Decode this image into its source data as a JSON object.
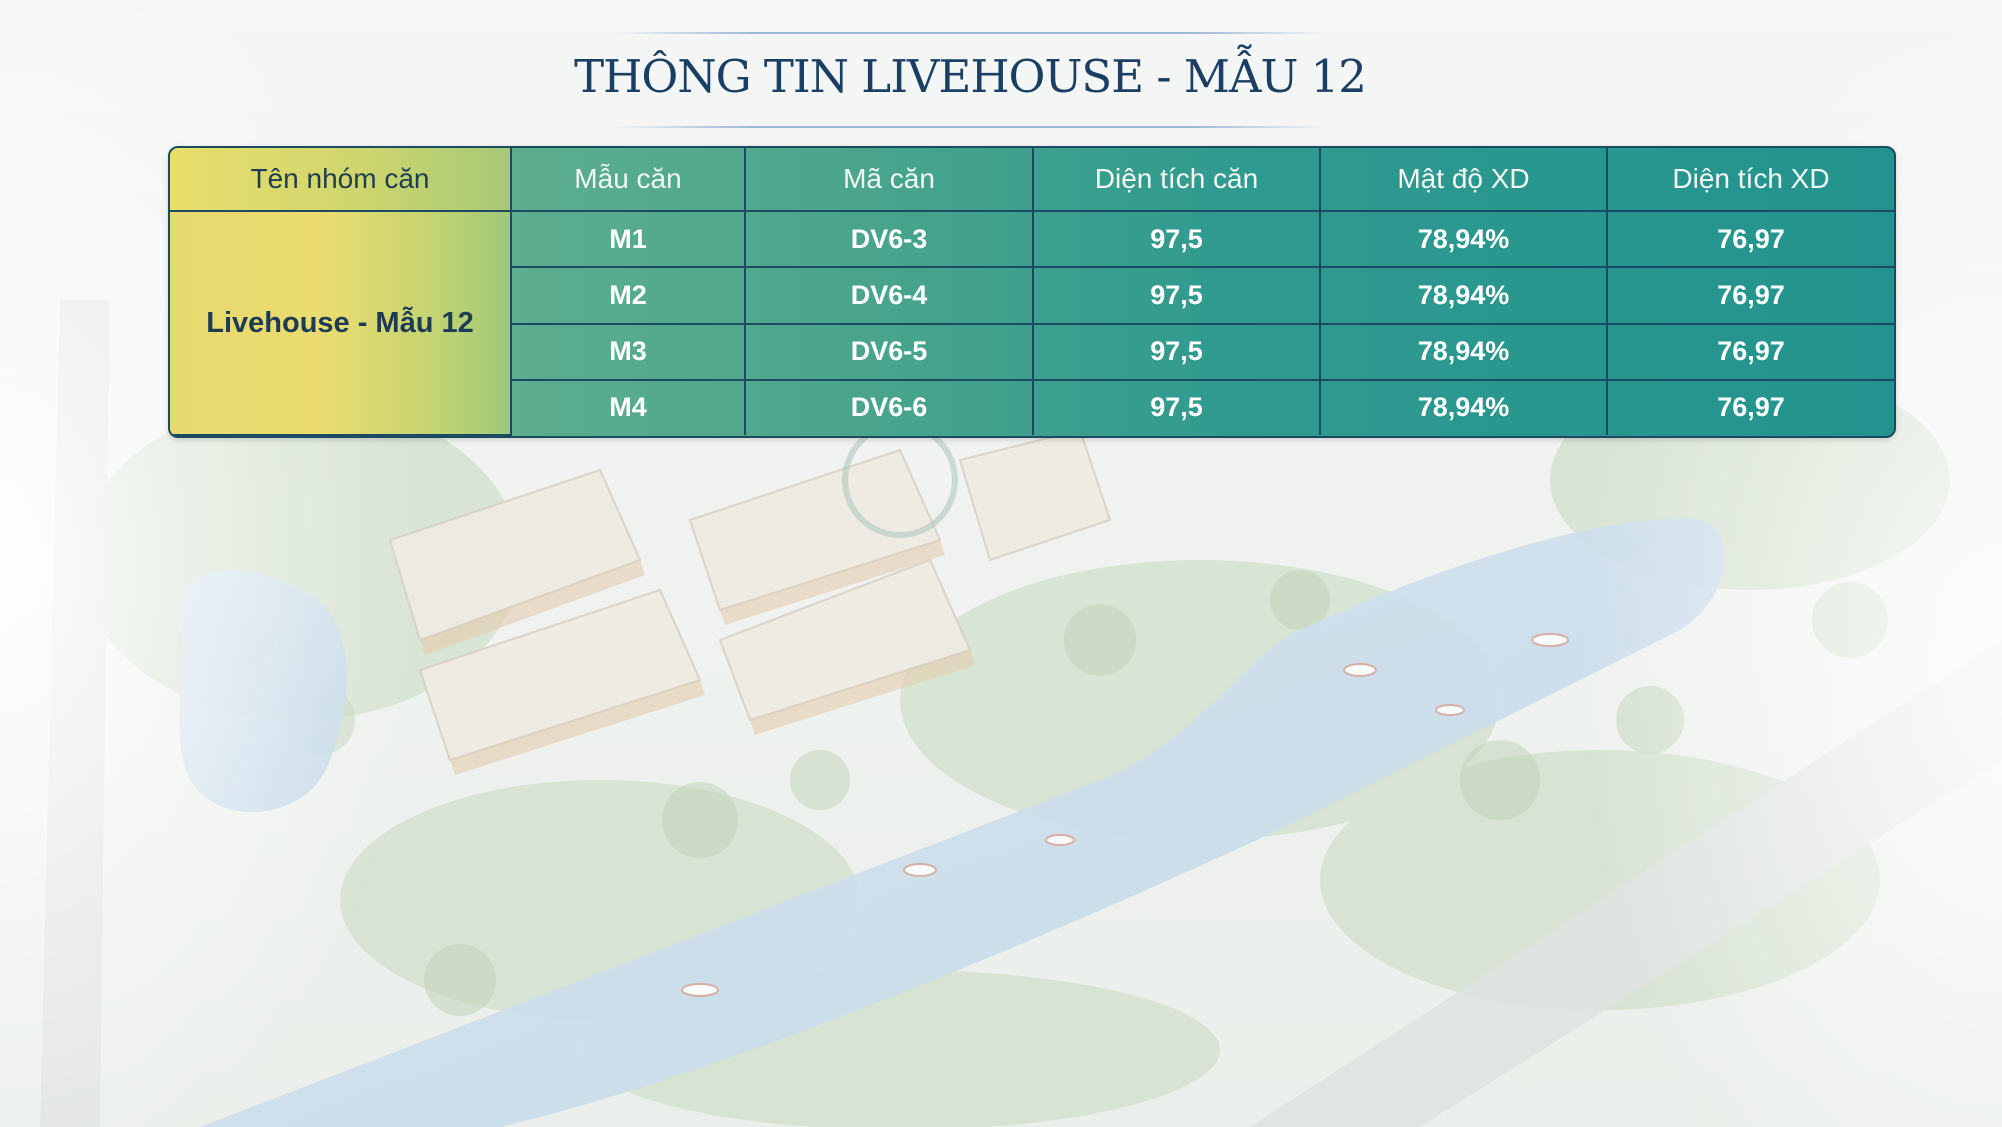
{
  "title": "THÔNG TIN LIVEHOUSE - MẪU 12",
  "table": {
    "headers": [
      "Tên nhóm căn",
      "Mẫu căn",
      "Mã căn",
      "Diện tích căn",
      "Mật độ XD",
      "Diện tích XD"
    ],
    "group_name": "Livehouse - Mẫu 12",
    "rows": [
      {
        "model": "M1",
        "code": "DV6-3",
        "area": "97,5",
        "density": "78,94%",
        "build_area": "76,97"
      },
      {
        "model": "M2",
        "code": "DV6-4",
        "area": "97,5",
        "density": "78,94%",
        "build_area": "76,97"
      },
      {
        "model": "M3",
        "code": "DV6-5",
        "area": "97,5",
        "density": "78,94%",
        "build_area": "76,97"
      },
      {
        "model": "M4",
        "code": "DV6-6",
        "area": "97,5",
        "density": "78,94%",
        "build_area": "76,97"
      }
    ]
  },
  "colors": {
    "title": "#1a3f63",
    "border": "#1c4a63",
    "group_cell": "#e6d96f",
    "header_teal": "#2f9a8f"
  }
}
